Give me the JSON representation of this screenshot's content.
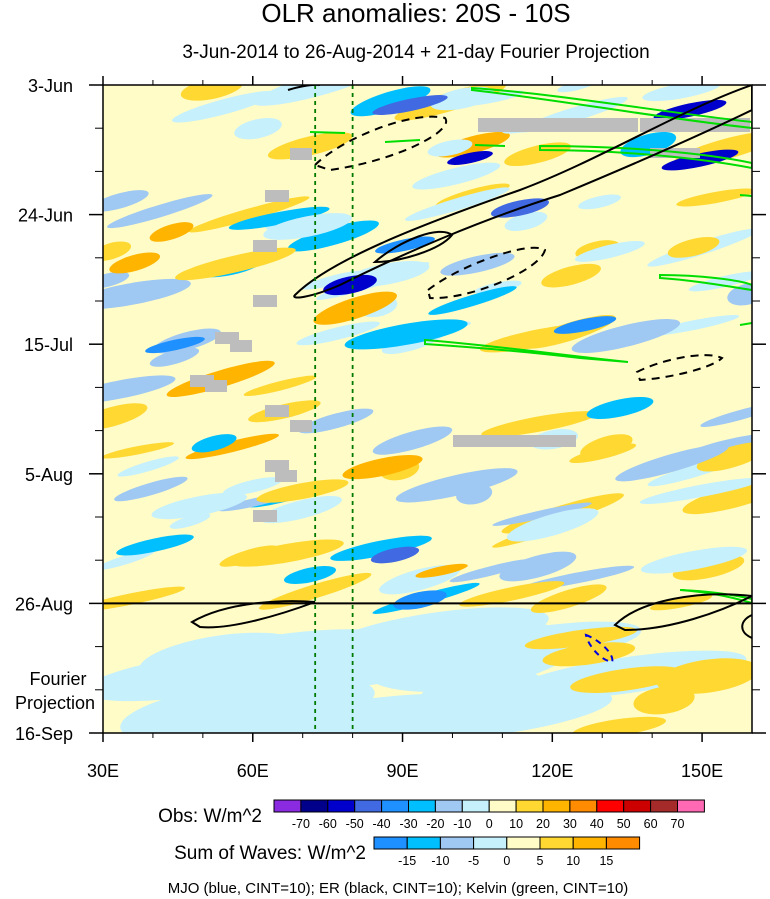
{
  "chart_data": {
    "type": "heatmap",
    "title": "OLR anomalies: 20S - 10S",
    "subtitle": "3-Jun-2014 to 26-Aug-2014 + 21-day Fourier Projection",
    "xlabel": "",
    "ylabel": "",
    "xlim": [
      30,
      160
    ],
    "x_ticks": [
      {
        "value": 30,
        "label": "30E"
      },
      {
        "value": 60,
        "label": "60E"
      },
      {
        "value": 90,
        "label": "90E"
      },
      {
        "value": 120,
        "label": "120E"
      },
      {
        "value": 150,
        "label": "150E"
      }
    ],
    "ylim_days": [
      0,
      105
    ],
    "y_ticks": [
      {
        "day": 0,
        "label": "3-Jun"
      },
      {
        "day": 21,
        "label": "24-Jun"
      },
      {
        "day": 42,
        "label": "15-Jul"
      },
      {
        "day": 63,
        "label": "5-Aug"
      },
      {
        "day": 84,
        "label": "26-Aug"
      },
      {
        "day": 105,
        "label": "16-Sep"
      }
    ],
    "projection_label": [
      "Fourier",
      "Projection"
    ],
    "observation_end_day": 84,
    "reference_longitudes": [
      72.5,
      80
    ],
    "colorbars": [
      {
        "label": "Obs: W/m^2",
        "levels": [
          "-70",
          "-60",
          "-50",
          "-40",
          "-30",
          "-20",
          "-10",
          "0",
          "10",
          "20",
          "30",
          "40",
          "50",
          "60",
          "70"
        ],
        "colors": [
          "#8a2be2",
          "#00008b",
          "#0000cd",
          "#4169e1",
          "#1e90ff",
          "#00bfff",
          "#9fc8f2",
          "#c6f0fc",
          "#fffcc7",
          "#ffd832",
          "#ffb400",
          "#ff8c00",
          "#ff0000",
          "#cd0000",
          "#a52a2a",
          "#ff69b4"
        ]
      },
      {
        "label": "Sum of Waves: W/m^2",
        "levels": [
          "-15",
          "-10",
          "-5",
          "0",
          "5",
          "10",
          "15"
        ],
        "colors": [
          "#1e90ff",
          "#00bfff",
          "#9fc8f2",
          "#c6f0fc",
          "#fffcc7",
          "#ffd832",
          "#ffb400",
          "#ff8c00"
        ]
      }
    ],
    "wave_overlays": [
      {
        "name": "MJO",
        "color": "#0000dd",
        "cint": 10
      },
      {
        "name": "ER",
        "color": "#000000",
        "cint": 10
      },
      {
        "name": "Kelvin",
        "color": "#00dd00",
        "cint": 10
      }
    ],
    "caption": "MJO (blue, CINT=10); ER (black, CINT=10); Kelvin (green, CINT=10)",
    "colors": {
      "background_field": "#fffcc7",
      "missing": "#bdbdbd",
      "reference_lines": "#007a00"
    }
  }
}
